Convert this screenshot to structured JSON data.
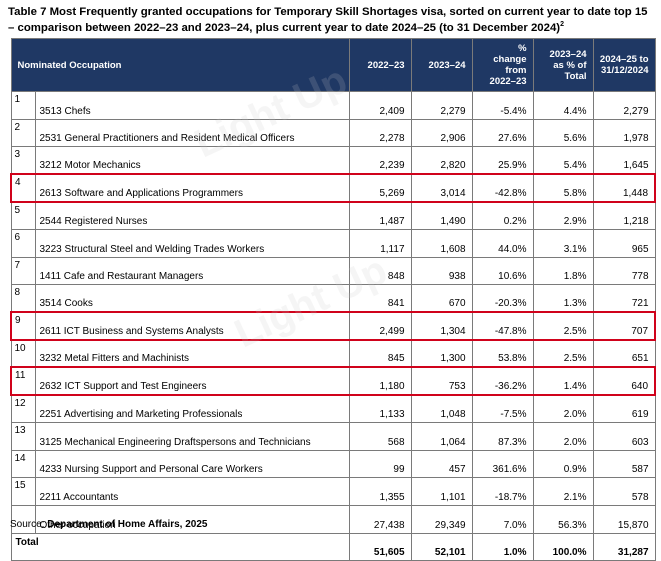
{
  "title": {
    "text": "Table 7 Most Frequently granted occupations for Temporary Skill Shortages visa, sorted on current year to date top 15 – comparison between 2022–23 and 2023–24, plus current year to date 2024–25 (to 31 December 2024)",
    "footnote_mark": "2"
  },
  "headers": {
    "occupation": "Nominated Occupation",
    "y2223": "2022–23",
    "y2324": "2023–24",
    "pct_change": [
      "%",
      "change",
      "from",
      "2022–23"
    ],
    "pct_total": [
      "2023–24",
      "as % of",
      "Total"
    ],
    "ytd": [
      "2024–25 to",
      "31/12/2024"
    ]
  },
  "rows": [
    {
      "rank": "1",
      "occupation": "3513 Chefs",
      "y2223": "2,409",
      "y2324": "2,279",
      "change": "-5.4%",
      "share": "4.4%",
      "ytd": "2,279",
      "highlight": false
    },
    {
      "rank": "2",
      "occupation": "2531 General Practitioners and Resident Medical Officers",
      "y2223": "2,278",
      "y2324": "2,906",
      "change": "27.6%",
      "share": "5.6%",
      "ytd": "1,978",
      "highlight": false
    },
    {
      "rank": "3",
      "occupation": "3212 Motor Mechanics",
      "y2223": "2,239",
      "y2324": "2,820",
      "change": "25.9%",
      "share": "5.4%",
      "ytd": "1,645",
      "highlight": false
    },
    {
      "rank": "4",
      "occupation": "2613 Software and Applications Programmers",
      "y2223": "5,269",
      "y2324": "3,014",
      "change": "-42.8%",
      "share": "5.8%",
      "ytd": "1,448",
      "highlight": true
    },
    {
      "rank": "5",
      "occupation": "2544 Registered Nurses",
      "y2223": "1,487",
      "y2324": "1,490",
      "change": "0.2%",
      "share": "2.9%",
      "ytd": "1,218",
      "highlight": false
    },
    {
      "rank": "6",
      "occupation": "3223 Structural Steel and Welding Trades Workers",
      "y2223": "1,117",
      "y2324": "1,608",
      "change": "44.0%",
      "share": "3.1%",
      "ytd": "965",
      "highlight": false
    },
    {
      "rank": "7",
      "occupation": "1411 Cafe and Restaurant Managers",
      "y2223": "848",
      "y2324": "938",
      "change": "10.6%",
      "share": "1.8%",
      "ytd": "778",
      "highlight": false
    },
    {
      "rank": "8",
      "occupation": "3514 Cooks",
      "y2223": "841",
      "y2324": "670",
      "change": "-20.3%",
      "share": "1.3%",
      "ytd": "721",
      "highlight": false
    },
    {
      "rank": "9",
      "occupation": "2611 ICT Business and Systems Analysts",
      "y2223": "2,499",
      "y2324": "1,304",
      "change": "-47.8%",
      "share": "2.5%",
      "ytd": "707",
      "highlight": true
    },
    {
      "rank": "10",
      "occupation": "3232 Metal Fitters and Machinists",
      "y2223": "845",
      "y2324": "1,300",
      "change": "53.8%",
      "share": "2.5%",
      "ytd": "651",
      "highlight": false
    },
    {
      "rank": "11",
      "occupation": "2632 ICT Support and Test Engineers",
      "y2223": "1,180",
      "y2324": "753",
      "change": "-36.2%",
      "share": "1.4%",
      "ytd": "640",
      "highlight": true
    },
    {
      "rank": "12",
      "occupation": "2251 Advertising and Marketing Professionals",
      "y2223": "1,133",
      "y2324": "1,048",
      "change": "-7.5%",
      "share": "2.0%",
      "ytd": "619",
      "highlight": false
    },
    {
      "rank": "13",
      "occupation": "3125 Mechanical Engineering Draftspersons and Technicians",
      "y2223": "568",
      "y2324": "1,064",
      "change": "87.3%",
      "share": "2.0%",
      "ytd": "603",
      "highlight": false
    },
    {
      "rank": "14",
      "occupation": "4233 Nursing Support and Personal Care Workers",
      "y2223": "99",
      "y2324": "457",
      "change": "361.6%",
      "share": "0.9%",
      "ytd": "587",
      "highlight": false
    },
    {
      "rank": "15",
      "occupation": "2211 Accountants",
      "y2223": "1,355",
      "y2324": "1,101",
      "change": "-18.7%",
      "share": "2.1%",
      "ytd": "578",
      "highlight": false
    }
  ],
  "other": {
    "occupation": "Other occupation",
    "y2223": "27,438",
    "y2324": "29,349",
    "change": "7.0%",
    "share": "56.3%",
    "ytd": "15,870"
  },
  "total": {
    "label": "Total",
    "y2223": "51,605",
    "y2324": "52,101",
    "change": "1.0%",
    "share": "100.0%",
    "ytd": "31,287"
  },
  "source": {
    "prefix": "Source: ",
    "text": "Department of Home Affairs, 2025"
  },
  "colors": {
    "header_bg": "#1f3864",
    "highlight_border": "#d0021b"
  },
  "watermark": "Light Up"
}
